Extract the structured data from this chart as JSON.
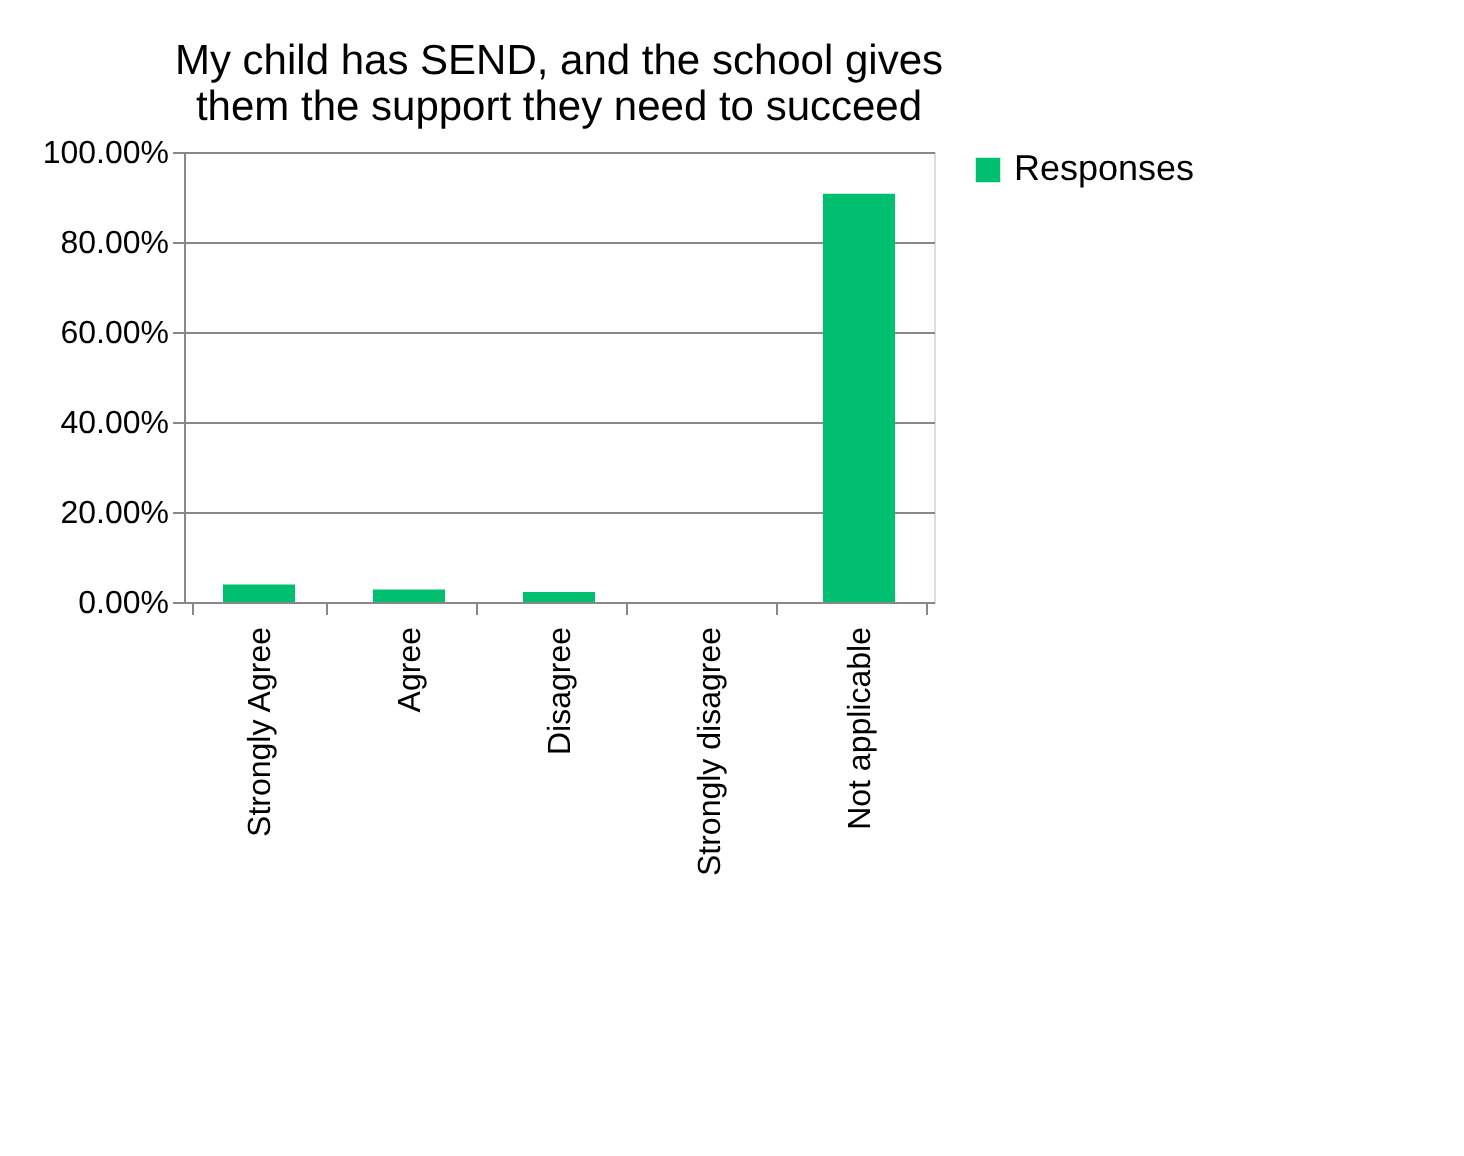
{
  "chart_data": {
    "type": "bar",
    "title": [
      "My child has SEND, and the school gives",
      "them the support they need to succeed"
    ],
    "categories": [
      "Strongly Agree",
      "Agree",
      "Disagree",
      "Strongly disagree",
      "Not applicable"
    ],
    "series": [
      {
        "name": "Responses",
        "color": "#00bf6f",
        "values": [
          3.9,
          2.8,
          2.2,
          0,
          90.7
        ]
      }
    ],
    "ylim": [
      0,
      100
    ],
    "yticks": [
      {
        "value": 0,
        "label": "0.00%"
      },
      {
        "value": 20,
        "label": "20.00%"
      },
      {
        "value": 40,
        "label": "40.00%"
      },
      {
        "value": 60,
        "label": "60.00%"
      },
      {
        "value": 80,
        "label": "80.00%"
      },
      {
        "value": 100,
        "label": "100.00%"
      }
    ],
    "grid": "y",
    "legend": "right"
  }
}
